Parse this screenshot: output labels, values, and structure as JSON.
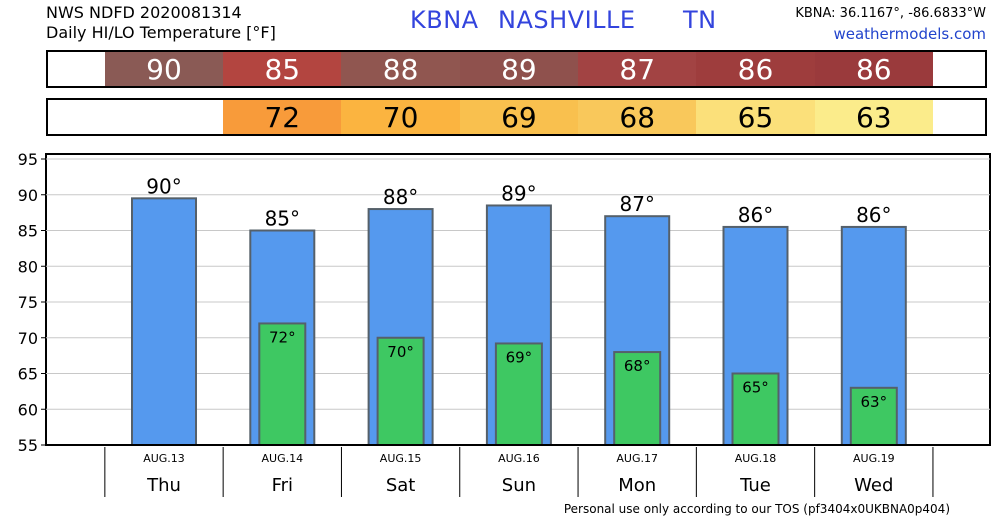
{
  "header": {
    "source_line": "NWS NDFD 2020081314",
    "subtitle": "Daily HI/LO Temperature [°F]",
    "station_code": "KBNA",
    "station_name": "NASHVILLE",
    "state": "TN",
    "coords": "KBNA: 36.1167°, -86.6833°W",
    "site": "weathermodels.com"
  },
  "footer": {
    "text": "Personal use only according to our TOS (pf3404x0UKBNA0p404)"
  },
  "colors": {
    "high_bar": "#5599ee",
    "low_bar": "#3ec862",
    "hi_strip": [
      "#8a5a55",
      "#b34540",
      "#905650",
      "#8f514d",
      "#a24343",
      "#9e3d3d",
      "#9a3a3c"
    ],
    "lo_strip": [
      null,
      "#f89b3a",
      "#fbb440",
      "#f9c04e",
      "#f9c85b",
      "#fbe07a",
      "#fbec8b"
    ]
  },
  "chart_data": {
    "type": "bar",
    "categories": [
      "Thu",
      "Fri",
      "Sat",
      "Sun",
      "Mon",
      "Tue",
      "Wed"
    ],
    "dates": [
      "AUG.13",
      "AUG.14",
      "AUG.15",
      "AUG.16",
      "AUG.17",
      "AUG.18",
      "AUG.19"
    ],
    "series": [
      {
        "values": [
          89.5,
          85,
          88,
          88.5,
          87,
          85.5,
          85.5
        ],
        "labels": [
          "90°",
          "85°",
          "88°",
          "89°",
          "87°",
          "86°",
          "86°"
        ]
      },
      {
        "values": [
          null,
          72,
          70,
          69.2,
          68,
          65,
          63
        ],
        "labels": [
          "",
          "72°",
          "70°",
          "69°",
          "68°",
          "65°",
          "63°"
        ]
      }
    ],
    "hi_strip_labels": [
      "90",
      "85",
      "88",
      "89",
      "87",
      "86",
      "86"
    ],
    "lo_strip_labels": [
      "",
      "72",
      "70",
      "69",
      "68",
      "65",
      "63"
    ],
    "y_ticks": [
      "95",
      "90",
      "85",
      "80",
      "75",
      "70",
      "65",
      "60",
      "55"
    ],
    "ylim": [
      55,
      95
    ],
    "grid": true
  }
}
